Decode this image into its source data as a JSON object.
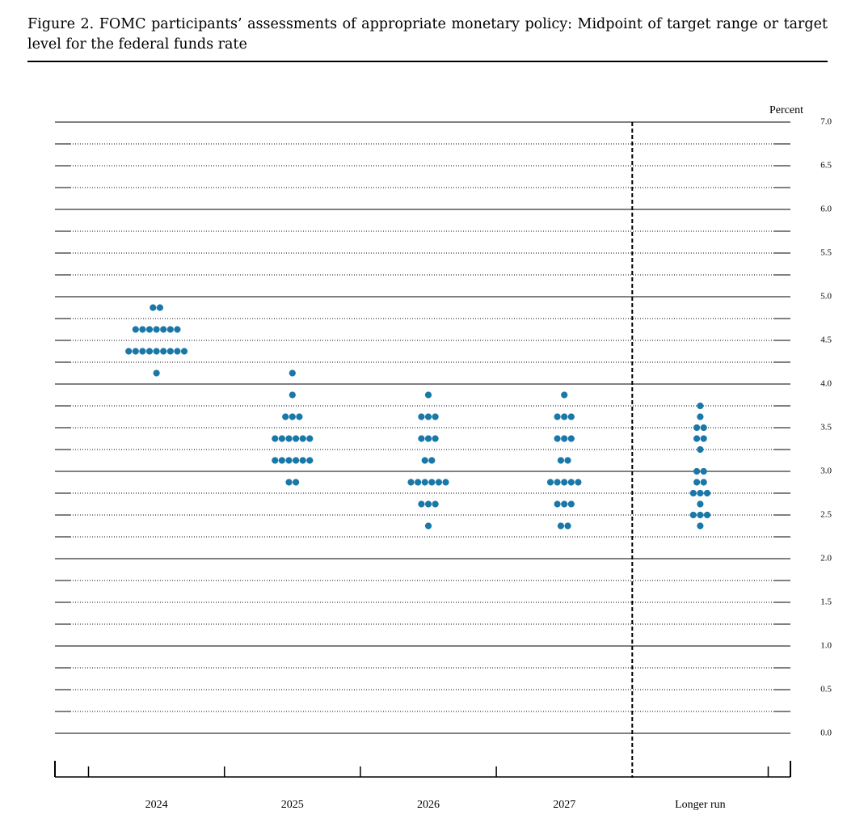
{
  "chart_data": {
    "type": "dot",
    "title": "Figure 2.  FOMC participants’ assessments of appropriate monetary policy: Midpoint of target range or target level for the federal funds rate",
    "y_label": "Percent",
    "color": "#1a78a8",
    "categories": [
      "2024",
      "2025",
      "2026",
      "2027",
      "Longer run"
    ],
    "dots": [
      [
        [
          4.875,
          2
        ],
        [
          4.625,
          7
        ],
        [
          4.375,
          9
        ],
        [
          4.125,
          1
        ]
      ],
      [
        [
          4.125,
          1
        ],
        [
          3.875,
          1
        ],
        [
          3.625,
          3
        ],
        [
          3.375,
          6
        ],
        [
          3.125,
          6
        ],
        [
          2.875,
          2
        ]
      ],
      [
        [
          3.875,
          1
        ],
        [
          3.625,
          3
        ],
        [
          3.375,
          3
        ],
        [
          3.125,
          2
        ],
        [
          2.875,
          6
        ],
        [
          2.625,
          3
        ],
        [
          2.375,
          1
        ]
      ],
      [
        [
          3.875,
          1
        ],
        [
          3.625,
          3
        ],
        [
          3.375,
          3
        ],
        [
          3.125,
          2
        ],
        [
          2.875,
          5
        ],
        [
          2.625,
          3
        ],
        [
          2.375,
          2
        ]
      ],
      [
        [
          3.75,
          1
        ],
        [
          3.625,
          1
        ],
        [
          3.5,
          2
        ],
        [
          3.375,
          2
        ],
        [
          3.25,
          1
        ],
        [
          3.0,
          2
        ],
        [
          2.875,
          2
        ],
        [
          2.75,
          3
        ],
        [
          2.625,
          1
        ],
        [
          2.5,
          3
        ],
        [
          2.375,
          1
        ]
      ]
    ],
    "ylim": [
      0,
      7
    ],
    "yticks": [
      {
        "value": 0,
        "label": "0.0"
      },
      {
        "value": 0.5,
        "label": "0.5"
      },
      {
        "value": 1,
        "label": "1.0"
      },
      {
        "value": 1.5,
        "label": "1.5"
      },
      {
        "value": 2,
        "label": "2.0"
      },
      {
        "value": 2.5,
        "label": "2.5"
      },
      {
        "value": 3,
        "label": "3.0"
      },
      {
        "value": 3.5,
        "label": "3.5"
      },
      {
        "value": 4,
        "label": "4.0"
      },
      {
        "value": 4.5,
        "label": "4.5"
      },
      {
        "value": 5,
        "label": "5.0"
      },
      {
        "value": 5.5,
        "label": "5.5"
      },
      {
        "value": 6,
        "label": "6.0"
      },
      {
        "value": 6.5,
        "label": "6.5"
      },
      {
        "value": 7,
        "label": "7.0"
      }
    ],
    "minor_yticks": [
      0.25,
      0.75,
      1.25,
      1.75,
      2.25,
      2.75,
      3.25,
      3.75,
      4.25,
      4.75,
      5.25,
      5.75,
      6.25,
      6.75
    ]
  }
}
